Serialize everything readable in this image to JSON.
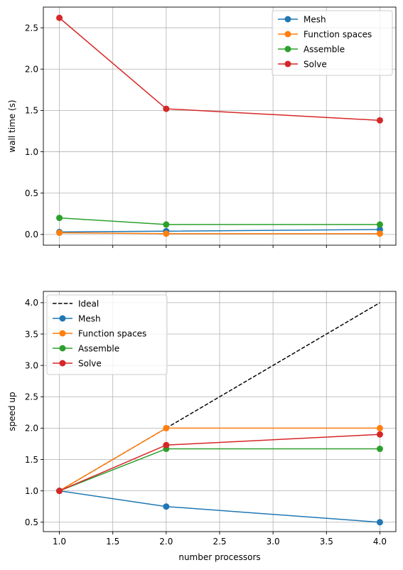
{
  "chart_data": [
    {
      "type": "line",
      "title": "",
      "xlabel": "",
      "ylabel": "wall time (s)",
      "x": [
        1,
        2,
        4
      ],
      "xlim": [
        0.85,
        4.15
      ],
      "ylim": [
        -0.13,
        2.75
      ],
      "xticks": [
        1.0,
        1.5,
        2.0,
        2.5,
        3.0,
        3.5,
        4.0
      ],
      "xticklabels_visible": false,
      "yticks": [
        0.0,
        0.5,
        1.0,
        1.5,
        2.0,
        2.5
      ],
      "yticklabels": [
        "0.0",
        "0.5",
        "1.0",
        "1.5",
        "2.0",
        "2.5"
      ],
      "grid": true,
      "legend_position": "top-right",
      "series": [
        {
          "name": "Mesh",
          "color": "#1f77b4",
          "marker": "circle",
          "values": [
            0.03,
            0.04,
            0.06
          ]
        },
        {
          "name": "Function spaces",
          "color": "#ff7f0e",
          "marker": "circle",
          "values": [
            0.02,
            0.01,
            0.01
          ]
        },
        {
          "name": "Assemble",
          "color": "#2ca02c",
          "marker": "circle",
          "values": [
            0.2,
            0.12,
            0.12
          ]
        },
        {
          "name": "Solve",
          "color": "#d62728",
          "marker": "circle",
          "values": [
            2.62,
            1.52,
            1.38
          ]
        }
      ]
    },
    {
      "type": "line",
      "title": "",
      "xlabel": "number processors",
      "ylabel": "speed up",
      "x": [
        1,
        2,
        4
      ],
      "xlim": [
        0.85,
        4.15
      ],
      "ylim": [
        0.35,
        4.18
      ],
      "xticks": [
        1.0,
        1.5,
        2.0,
        2.5,
        3.0,
        3.5,
        4.0
      ],
      "xticklabels": [
        "1.0",
        "1.5",
        "2.0",
        "2.5",
        "3.0",
        "3.5",
        "4.0"
      ],
      "xticklabels_visible": true,
      "yticks": [
        0.5,
        1.0,
        1.5,
        2.0,
        2.5,
        3.0,
        3.5,
        4.0
      ],
      "yticklabels": [
        "0.5",
        "1.0",
        "1.5",
        "2.0",
        "2.5",
        "3.0",
        "3.5",
        "4.0"
      ],
      "grid": true,
      "legend_position": "top-left",
      "series": [
        {
          "name": "Ideal",
          "color": "#000000",
          "marker": "none",
          "dashed": true,
          "values": [
            1.0,
            2.0,
            4.0
          ]
        },
        {
          "name": "Mesh",
          "color": "#1f77b4",
          "marker": "circle",
          "values": [
            1.0,
            0.75,
            0.5
          ]
        },
        {
          "name": "Function spaces",
          "color": "#ff7f0e",
          "marker": "circle",
          "values": [
            1.0,
            2.0,
            2.0
          ]
        },
        {
          "name": "Assemble",
          "color": "#2ca02c",
          "marker": "circle",
          "values": [
            1.0,
            1.67,
            1.67
          ]
        },
        {
          "name": "Solve",
          "color": "#d62728",
          "marker": "circle",
          "values": [
            1.0,
            1.73,
            1.9
          ]
        }
      ]
    }
  ]
}
